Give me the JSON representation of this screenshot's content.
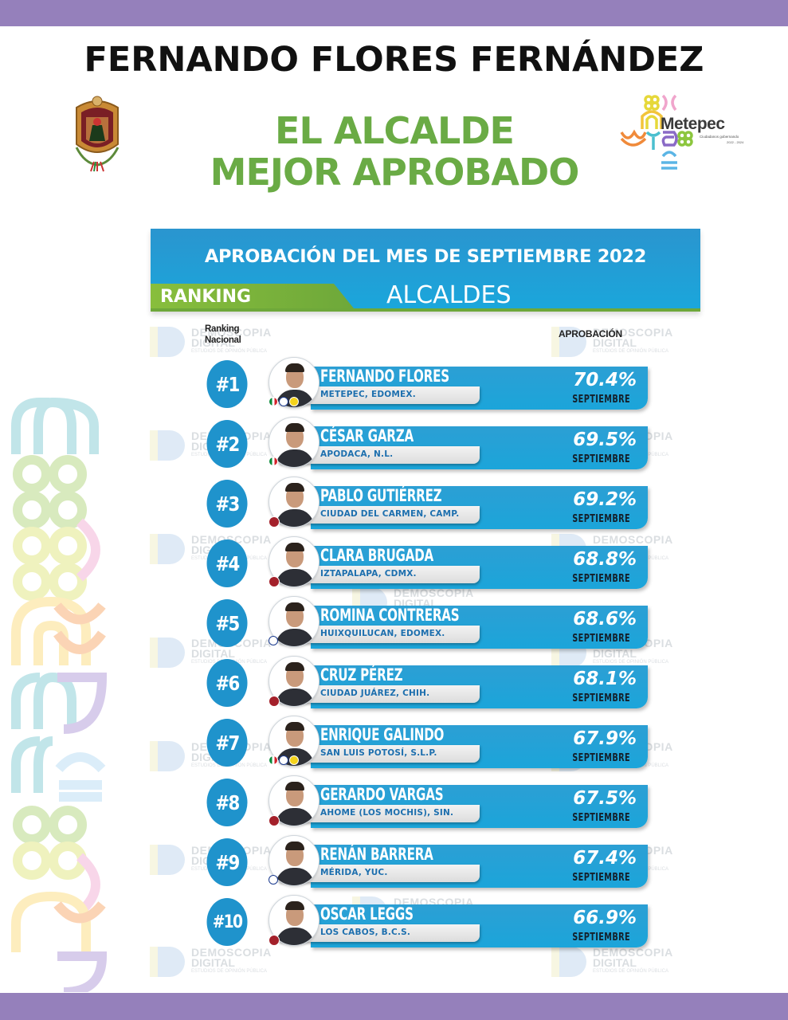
{
  "header": {
    "name": "FERNANDO FLORES FERNÁNDEZ",
    "subtitle_line1": "EL ALCALDE",
    "subtitle_line2": "MEJOR APROBADO"
  },
  "logos": {
    "left": "coat-of-arms-metepec",
    "right": {
      "name": "Metepec",
      "tagline": "Ciudadanos gobernando",
      "years": "2022 - 2024"
    }
  },
  "panel": {
    "title": "APROBACIÓN DEL MES DE SEPTIEMBRE 2022",
    "ranking_label": "RANKING",
    "category": "ALCALDES",
    "col_left_line1": "Ranking",
    "col_left_line2": "Nacional",
    "col_right": "APROBACIÓN"
  },
  "watermark": {
    "line1": "DEMOSCOPIA",
    "line2": "DIGITAL",
    "line3": "ESTUDIOS DE OPINIÓN PÚBLICA"
  },
  "colors": {
    "purple_bar": "#9580bb",
    "green_title": "#6aab45",
    "blue_bar": "#1ba5da",
    "rank_circle": "#1f93cc"
  },
  "rows": [
    {
      "rank": "#1",
      "name": "FERNANDO FLORES",
      "place": "METEPEC, EDOMEX.",
      "pct": "70.4%",
      "month": "SEPTIEMBRE",
      "parties": [
        "pri",
        "pan",
        "prd"
      ]
    },
    {
      "rank": "#2",
      "name": "CÉSAR GARZA",
      "place": "APODACA, N.L.",
      "pct": "69.5%",
      "month": "SEPTIEMBRE",
      "parties": [
        "pri"
      ]
    },
    {
      "rank": "#3",
      "name": "PABLO GUTIÉRREZ",
      "place": "CIUDAD DEL CARMEN, CAMP.",
      "pct": "69.2%",
      "month": "SEPTIEMBRE",
      "parties": [
        "morena"
      ]
    },
    {
      "rank": "#4",
      "name": "CLARA BRUGADA",
      "place": "IZTAPALAPA, CDMX.",
      "pct": "68.8%",
      "month": "SEPTIEMBRE",
      "parties": [
        "morena"
      ]
    },
    {
      "rank": "#5",
      "name": "ROMINA CONTRERAS",
      "place": "HUIXQUILUCAN, EDOMEX.",
      "pct": "68.6%",
      "month": "SEPTIEMBRE",
      "parties": [
        "pan"
      ]
    },
    {
      "rank": "#6",
      "name": "CRUZ PÉREZ",
      "place": "CIUDAD JUÁREZ, CHIH.",
      "pct": "68.1%",
      "month": "SEPTIEMBRE",
      "parties": [
        "morena"
      ]
    },
    {
      "rank": "#7",
      "name": "ENRIQUE GALINDO",
      "place": "SAN LUIS POTOSÍ, S.L.P.",
      "pct": "67.9%",
      "month": "SEPTIEMBRE",
      "parties": [
        "pri",
        "pan",
        "prd"
      ]
    },
    {
      "rank": "#8",
      "name": "GERARDO VARGAS",
      "place": "AHOME (LOS MOCHIS), SIN.",
      "pct": "67.5%",
      "month": "SEPTIEMBRE",
      "parties": [
        "morena"
      ]
    },
    {
      "rank": "#9",
      "name": "RENÁN BARRERA",
      "place": "MÉRIDA, YUC.",
      "pct": "67.4%",
      "month": "SEPTIEMBRE",
      "parties": [
        "pan"
      ]
    },
    {
      "rank": "#10",
      "name": "OSCAR LEGGS",
      "place": "LOS CABOS, B.C.S.",
      "pct": "66.9%",
      "month": "SEPTIEMBRE",
      "parties": [
        "morena"
      ]
    }
  ],
  "party_labels": {
    "pri": "PRI",
    "pan": "PAN",
    "prd": "PRD",
    "morena": "morena"
  }
}
